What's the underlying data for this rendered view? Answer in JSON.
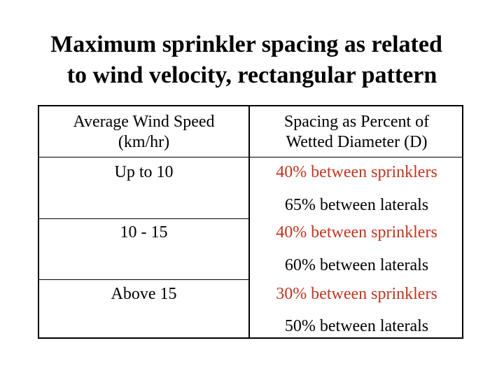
{
  "title": {
    "line1": "Maximum sprinkler spacing as related",
    "line2": "to wind velocity, rectangular pattern"
  },
  "table": {
    "header": {
      "col1_line1": "Average Wind Speed",
      "col1_line2": "(km/hr)",
      "col2_line1": "Spacing as Percent of",
      "col2_line2": "Wetted Diameter (D)"
    },
    "rows": [
      {
        "speed": "Up to 10",
        "sprinklers": "40% between sprinklers",
        "laterals": "65% between laterals"
      },
      {
        "speed": "10 - 15",
        "sprinklers": "40% between sprinklers",
        "laterals": "60% between laterals"
      },
      {
        "speed": "Above 15",
        "sprinklers": "30% between sprinklers",
        "laterals": "50% between laterals"
      }
    ]
  },
  "colors": {
    "accent_red": "#c0341e",
    "text": "#000000",
    "background": "#ffffff"
  }
}
